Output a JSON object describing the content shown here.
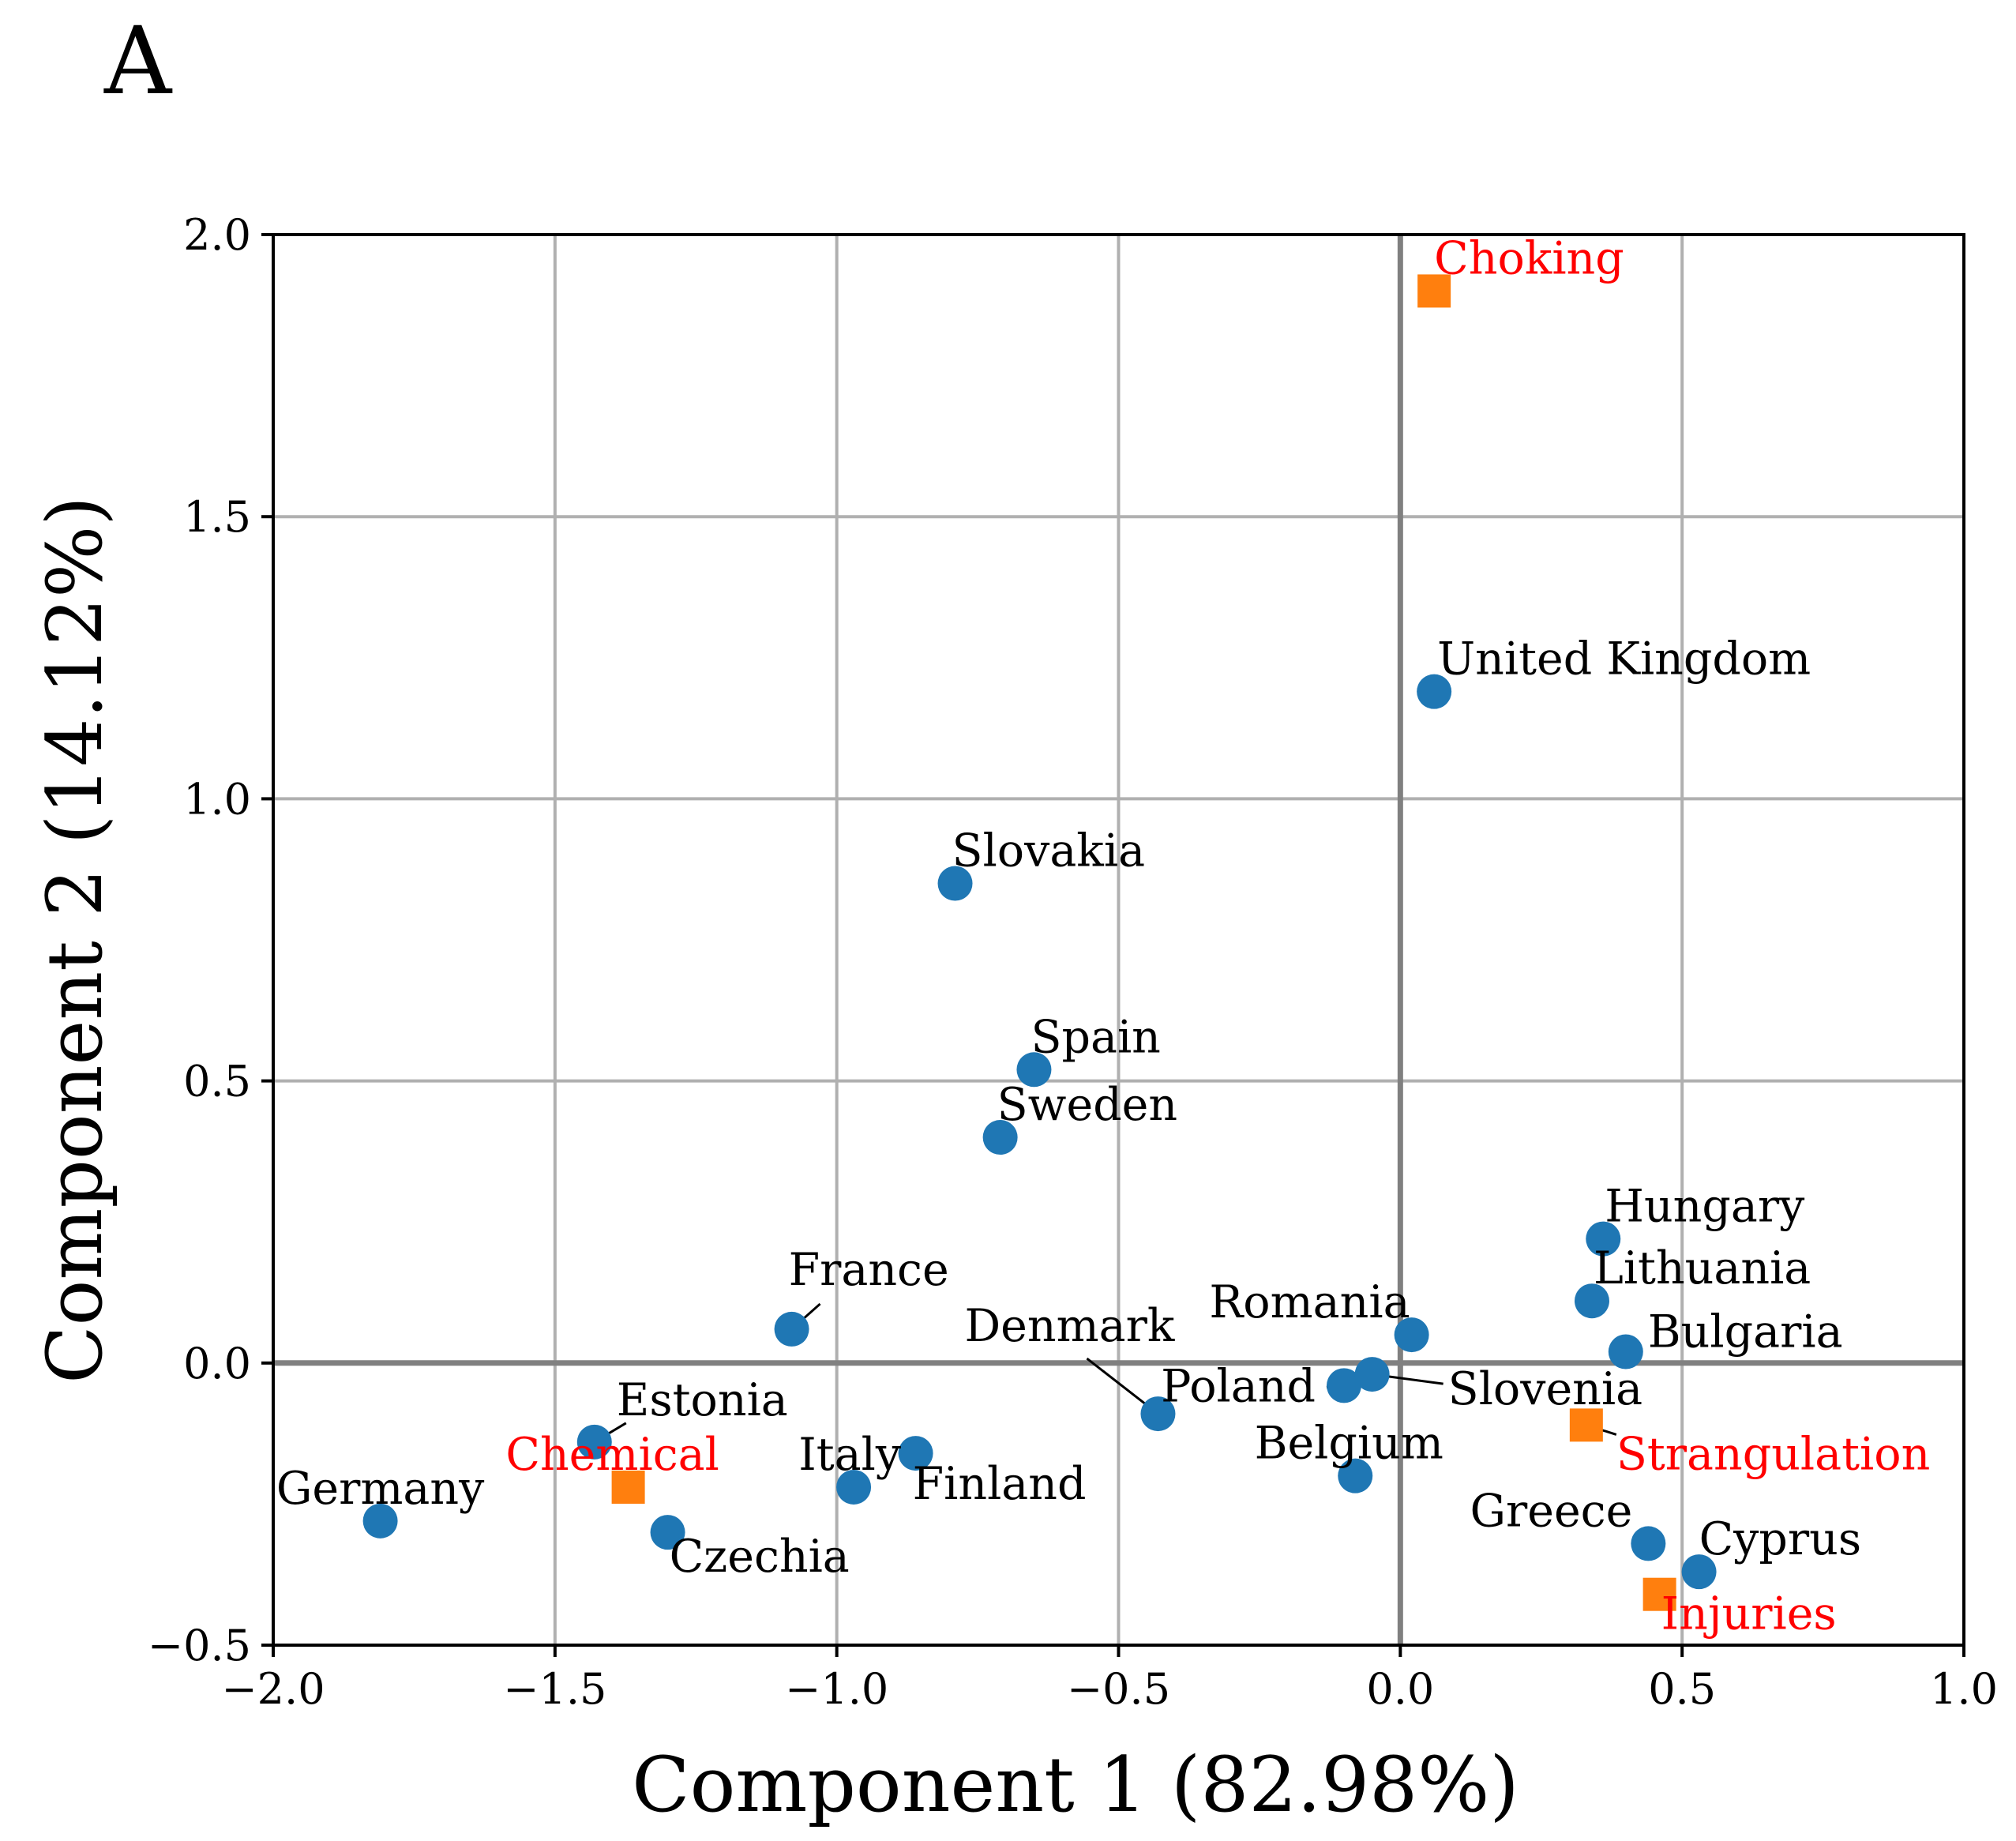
{
  "panel_label": "A",
  "chart_data": {
    "type": "scatter",
    "xlabel": "Component 1 (82.98%)",
    "ylabel": "Component 2 (14.12%)",
    "xlim": [
      -2.0,
      1.0
    ],
    "ylim": [
      -0.5,
      2.0
    ],
    "xticks": [
      -2.0,
      -1.5,
      -1.0,
      -0.5,
      0.0,
      0.5,
      1.0
    ],
    "xtick_labels": [
      "−2.0",
      "−1.5",
      "−1.0",
      "−0.5",
      "0.0",
      "0.5",
      "1.0"
    ],
    "yticks": [
      -0.5,
      0.0,
      0.5,
      1.0,
      1.5,
      2.0
    ],
    "ytick_labels": [
      "−0.5",
      "0.0",
      "0.5",
      "1.0",
      "1.5",
      "2.0"
    ],
    "grid": true,
    "zero_lines": true,
    "colors": {
      "country_marker": "#1f77b4",
      "category_marker": "#ff7f0e",
      "country_label": "#000000",
      "category_label": "#ff0000"
    },
    "series": [
      {
        "marker": "circle",
        "points": [
          {
            "label": "United Kingdom",
            "x": 0.06,
            "y": 1.19
          },
          {
            "label": "Slovakia",
            "x": -0.79,
            "y": 0.85
          },
          {
            "label": "Spain",
            "x": -0.65,
            "y": 0.52
          },
          {
            "label": "Sweden",
            "x": -0.71,
            "y": 0.4
          },
          {
            "label": "France",
            "x": -1.08,
            "y": 0.06
          },
          {
            "label": "Hungary",
            "x": 0.36,
            "y": 0.22
          },
          {
            "label": "Lithuania",
            "x": 0.34,
            "y": 0.11
          },
          {
            "label": "Bulgaria",
            "x": 0.4,
            "y": 0.02
          },
          {
            "label": "Romania",
            "x": 0.02,
            "y": 0.05
          },
          {
            "label": "Denmark",
            "x": -0.43,
            "y": -0.09
          },
          {
            "label": "Poland",
            "x": -0.1,
            "y": -0.04
          },
          {
            "label": "Slovenia",
            "x": -0.05,
            "y": -0.02
          },
          {
            "label": "Belgium",
            "x": -0.08,
            "y": -0.2
          },
          {
            "label": "Estonia",
            "x": -1.43,
            "y": -0.14
          },
          {
            "label": "Germany",
            "x": -1.81,
            "y": -0.28
          },
          {
            "label": "Czechia",
            "x": -1.3,
            "y": -0.3
          },
          {
            "label": "Italy",
            "x": -0.97,
            "y": -0.22
          },
          {
            "label": "Finland",
            "x": -0.86,
            "y": -0.16
          },
          {
            "label": "Greece",
            "x": 0.44,
            "y": -0.32
          },
          {
            "label": "Cyprus",
            "x": 0.53,
            "y": -0.37
          }
        ]
      },
      {
        "marker": "square",
        "points": [
          {
            "label": "Choking",
            "x": 0.06,
            "y": 1.9
          },
          {
            "label": "Chemical",
            "x": -1.37,
            "y": -0.22
          },
          {
            "label": "Strangulation",
            "x": 0.33,
            "y": -0.11
          },
          {
            "label": "Injuries",
            "x": 0.46,
            "y": -0.41
          }
        ]
      }
    ]
  }
}
